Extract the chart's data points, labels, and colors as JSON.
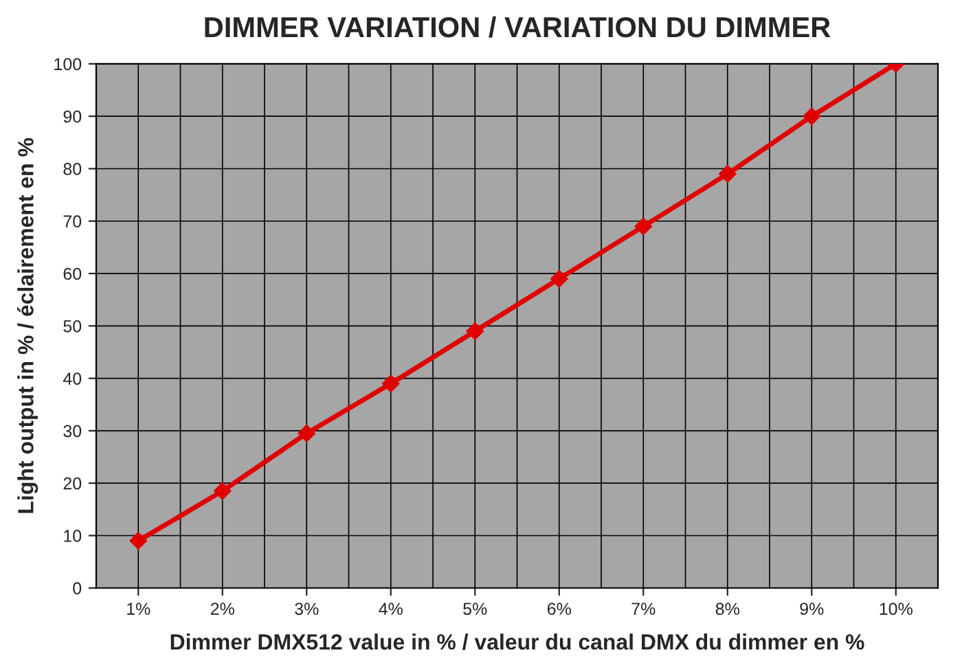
{
  "chart_data": {
    "type": "line",
    "title": "DIMMER VARIATION / VARIATION DU DIMMER",
    "xlabel": "Dimmer DMX512 value in % / valeur du canal DMX du dimmer en %",
    "ylabel": "Light output in % / éclairement en %",
    "categories": [
      "1%",
      "2%",
      "3%",
      "4%",
      "5%",
      "6%",
      "7%",
      "8%",
      "9%",
      "10%"
    ],
    "series": [
      {
        "color": "#e00000",
        "values": [
          9,
          18.5,
          29.5,
          39,
          49,
          59,
          69,
          79,
          90,
          100
        ]
      }
    ],
    "ylim": [
      0,
      100
    ],
    "yticks": [
      0,
      10,
      20,
      30,
      40,
      50,
      60,
      70,
      80,
      90,
      100
    ],
    "grid": true,
    "marker": "diamond",
    "line_style": "solid"
  }
}
